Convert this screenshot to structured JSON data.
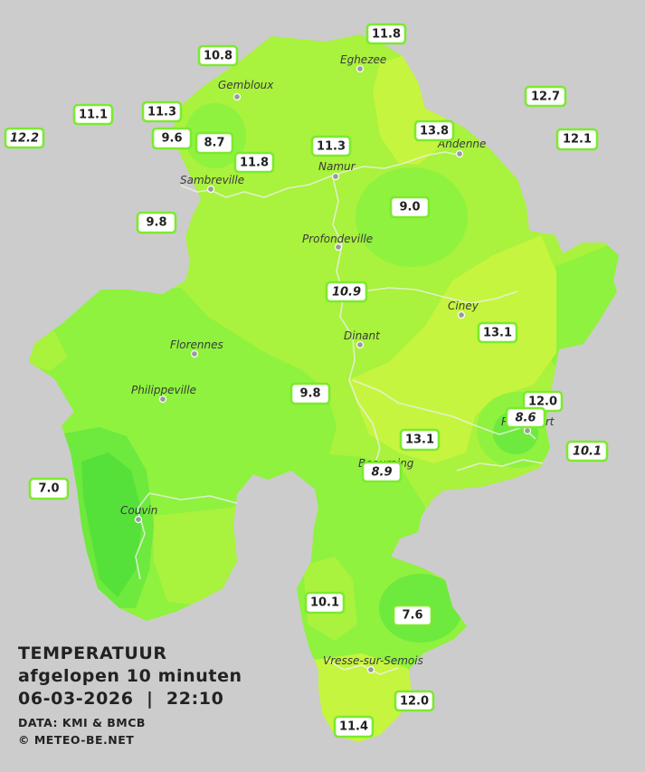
{
  "legend": {
    "title": "TEMPERATUUR",
    "subtitle": "afgelopen 10 minuten",
    "datetime": "06-03-2026  |  22:10",
    "data_source": "DATA: KMI & BMCB",
    "copyright": "© METEO-BE.NET"
  },
  "places": {
    "eghezee": "Eghezee",
    "gembloux": "Gembloux",
    "andenne": "Andenne",
    "namur": "Namur",
    "sambreville": "Sambreville",
    "profondeville": "Profondeville",
    "ciney": "Ciney",
    "dinant": "Dinant",
    "florennes": "Florennes",
    "philippeville": "Philippeville",
    "rochefort": "Rochefort",
    "beauraing": "Beauraing",
    "couvin": "Couvin",
    "vresse": "Vresse-sur-Semois"
  },
  "stations": {
    "s01": "11.8",
    "s02": "10.8",
    "s03": "12.7",
    "s04": "11.1",
    "s05": "11.3",
    "s06": "12.2",
    "s07": "9.6",
    "s08": "8.7",
    "s09": "13.8",
    "s10": "12.1",
    "s11": "11.3",
    "s12": "11.8",
    "s13": "9.0",
    "s14": "9.8",
    "s15": "10.9",
    "s16": "13.1",
    "s17": "9.8",
    "s18": "12.0",
    "s19": "8.6",
    "s20": "13.1",
    "s21": "10.1",
    "s22": "8.9",
    "s23": "7.0",
    "s24": "10.1",
    "s25": "7.6",
    "s26": "12.0",
    "s27": "11.4"
  },
  "colors": {
    "background": "#cccccc",
    "zone_yellow_green": "#c6f53f",
    "zone_light_green": "#a9f23d",
    "zone_green": "#8ef23e",
    "zone_mid_green": "#6ee93d",
    "zone_bright_green": "#55e13a",
    "box_border": "#7cea2e"
  }
}
